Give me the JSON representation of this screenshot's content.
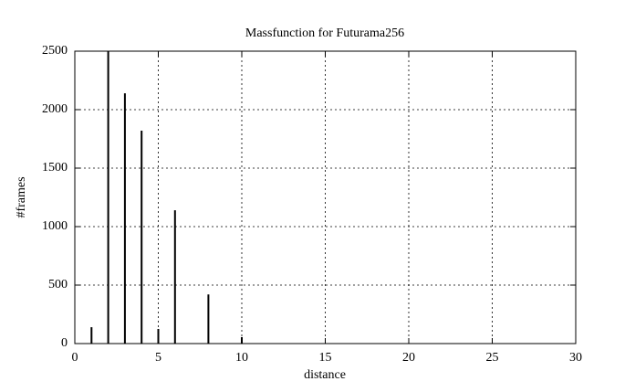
{
  "chart_data": {
    "type": "impulse",
    "title": "Massfunction for Futurama256",
    "x_label": "distance",
    "y_label": "#frames",
    "x": [
      1,
      2,
      3,
      4,
      5,
      6,
      8,
      10
    ],
    "values": [
      140,
      2500,
      2140,
      1820,
      125,
      1140,
      420,
      55
    ],
    "color": "#000000",
    "xlim": [
      0,
      30
    ],
    "xticks": [
      0,
      5,
      10,
      15,
      20,
      25,
      30
    ],
    "ylim": [
      0,
      2500
    ],
    "yticks": [
      0,
      500,
      1000,
      1500,
      2000,
      2500
    ],
    "grid": true
  }
}
